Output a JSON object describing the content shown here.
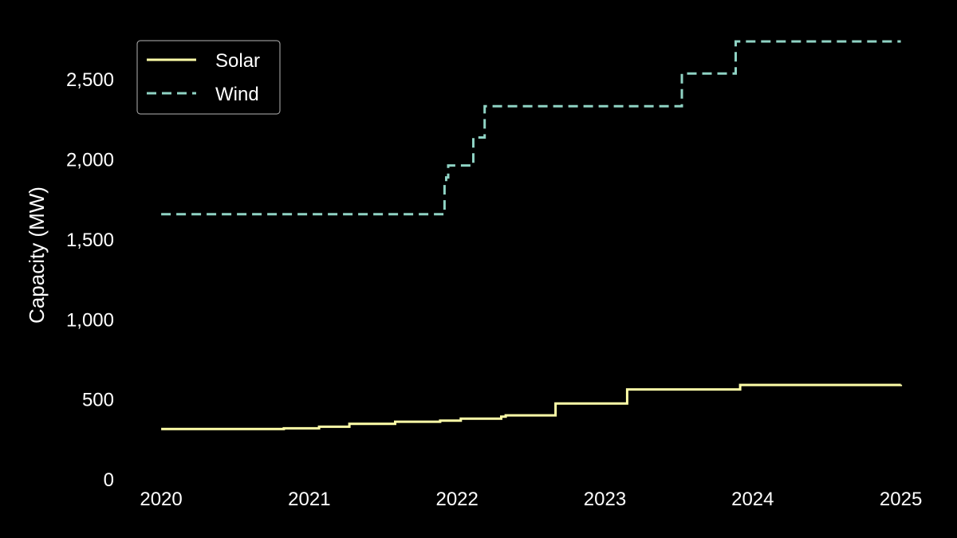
{
  "chart_data": {
    "type": "line",
    "step": "post",
    "title": "",
    "xlabel": "",
    "ylabel": "Capacity (MW)",
    "x_tick_labels": [
      "2020",
      "2021",
      "2022",
      "2023",
      "2024",
      "2025"
    ],
    "y_tick_labels": [
      "0",
      "500",
      "1,000",
      "1,500",
      "2,000",
      "2,500"
    ],
    "y_ticks": [
      0,
      500,
      1000,
      1500,
      2000,
      2500
    ],
    "xlim": [
      "2019-10-20",
      "2025-02-20"
    ],
    "ylim": [
      0,
      2800
    ],
    "grid": false,
    "legend_position": "top-left",
    "background_color": "#000000",
    "series": [
      {
        "name": "Solar",
        "color": "#ffffa8",
        "style": "solid",
        "x": [
          "2020-01-01",
          "2020-10-30",
          "2021-01-25",
          "2021-04-10",
          "2021-08-01",
          "2021-11-20",
          "2022-01-10",
          "2022-04-20",
          "2022-05-01",
          "2022-09-01",
          "2023-02-25",
          "2023-12-01",
          "2025-01-01"
        ],
        "values": [
          318,
          322,
          332,
          350,
          363,
          370,
          382,
          395,
          403,
          477,
          565,
          593,
          595
        ]
      },
      {
        "name": "Wind",
        "color": "#8fd3c4",
        "style": "dashed",
        "x": [
          "2020-01-01",
          "2021-12-01",
          "2021-12-05",
          "2021-12-10",
          "2022-02-10",
          "2022-03-10",
          "2023-07-10",
          "2023-11-20",
          "2025-01-01"
        ],
        "values": [
          1660,
          1850,
          1890,
          1965,
          2140,
          2335,
          2540,
          2740,
          2740
        ]
      }
    ]
  }
}
